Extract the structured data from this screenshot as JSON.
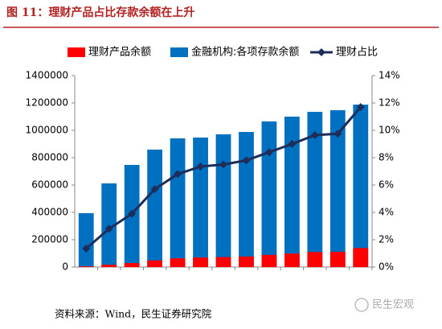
{
  "chart_data": {
    "type": "bar",
    "title": "图 11：理财产品占比存款余额在上升",
    "source": "资料来源：Wind，民生证券研究院",
    "watermark": "民生宏观",
    "categories": [
      null,
      null,
      null,
      null,
      null,
      null,
      null,
      null,
      null,
      null,
      null,
      null,
      null
    ],
    "series": [
      {
        "name": "理财产品余额",
        "type": "bar",
        "color": "#ff0000",
        "values": [
          5300,
          17000,
          29000,
          49000,
          64000,
          70000,
          73000,
          77000,
          89000,
          99000,
          110000,
          112000,
          139000
        ]
      },
      {
        "name": "金融机构:各项存款余额",
        "type": "bar",
        "color": "#0070c0",
        "values": [
          394000,
          612000,
          747000,
          859000,
          941000,
          947000,
          971000,
          988000,
          1065000,
          1100000,
          1135000,
          1147000,
          1188000
        ]
      },
      {
        "name": "理财占比",
        "type": "line",
        "axis": "y2",
        "color": "#1f2d5a",
        "values": [
          1.35,
          2.8,
          3.9,
          5.7,
          6.8,
          7.35,
          7.5,
          7.8,
          8.4,
          9.0,
          9.65,
          9.75,
          11.7
        ]
      }
    ],
    "ylim": [
      0,
      1400000
    ],
    "yticks": [
      0,
      200000,
      400000,
      600000,
      800000,
      1000000,
      1200000,
      1400000
    ],
    "y2lim": [
      0,
      14
    ],
    "y2ticks": [
      {
        "value": 0,
        "label": "0%"
      },
      {
        "value": 2,
        "label": "2%"
      },
      {
        "value": 4,
        "label": "4%"
      },
      {
        "value": 6,
        "label": "6%"
      },
      {
        "value": 8,
        "label": "8%"
      },
      {
        "value": 10,
        "label": "10%"
      },
      {
        "value": 12,
        "label": "12%"
      },
      {
        "value": 14,
        "label": "14%"
      }
    ]
  }
}
